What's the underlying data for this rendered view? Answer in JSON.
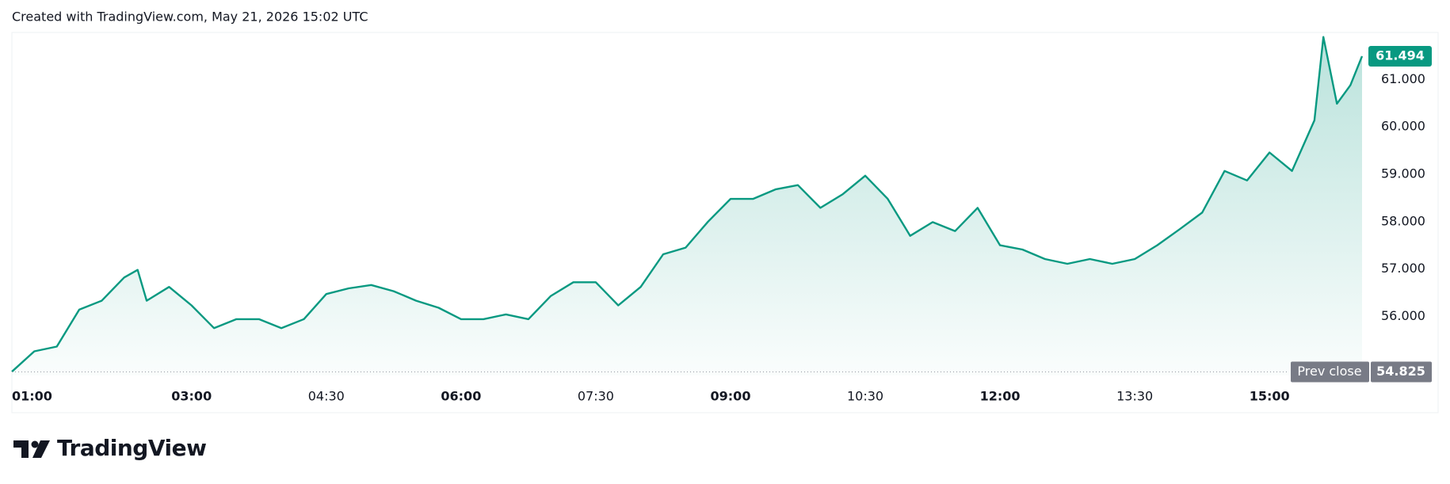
{
  "header": "Created with TradingView.com, May 21, 2026 15:02 UTC",
  "brand": "TradingView",
  "chart_data": {
    "type": "area",
    "color": "#089981",
    "x": [
      1,
      1.25,
      1.5,
      1.75,
      2,
      2.25,
      2.4,
      2.5,
      2.75,
      3,
      3.25,
      3.5,
      3.75,
      4,
      4.25,
      4.5,
      4.75,
      5,
      5.25,
      5.5,
      5.75,
      6,
      6.25,
      6.5,
      6.75,
      7,
      7.25,
      7.5,
      7.75,
      8,
      8.25,
      8.5,
      8.75,
      9,
      9.25,
      9.5,
      9.75,
      10,
      10.25,
      10.5,
      10.75,
      11,
      11.25,
      11.5,
      11.75,
      12,
      12.25,
      12.5,
      12.75,
      13,
      13.25,
      13.5,
      13.75,
      14,
      14.25,
      14.5,
      14.75,
      15,
      15.25,
      15.5,
      15.6,
      15.75,
      15.9,
      16.03
    ],
    "values": [
      54.83,
      55.26,
      55.36,
      56.14,
      56.33,
      56.82,
      56.98,
      56.33,
      56.62,
      56.23,
      55.75,
      55.94,
      55.94,
      55.75,
      55.94,
      56.47,
      56.59,
      56.66,
      56.53,
      56.33,
      56.18,
      55.94,
      55.94,
      56.04,
      55.94,
      56.43,
      56.72,
      56.72,
      56.23,
      56.62,
      57.31,
      57.45,
      58.0,
      58.48,
      58.48,
      58.68,
      58.77,
      58.29,
      58.58,
      58.97,
      58.48,
      57.7,
      57.99,
      57.8,
      58.29,
      57.5,
      57.41,
      57.21,
      57.11,
      57.21,
      57.11,
      57.21,
      57.5,
      57.84,
      58.19,
      59.07,
      58.87,
      59.46,
      59.07,
      60.14,
      61.9,
      60.49,
      60.88,
      61.494
    ],
    "xlim": [
      1,
      16.03
    ],
    "ylim": [
      54.75,
      62.0
    ],
    "xticks": [
      {
        "value": 1,
        "label": "01:00"
      },
      {
        "value": 3,
        "label": "03:00"
      },
      {
        "value": 4.5,
        "label": "04:30"
      },
      {
        "value": 6,
        "label": "06:00"
      },
      {
        "value": 7.5,
        "label": "07:30"
      },
      {
        "value": 9,
        "label": "09:00"
      },
      {
        "value": 10.5,
        "label": "10:30"
      },
      {
        "value": 12,
        "label": "12:00"
      },
      {
        "value": 13.5,
        "label": "13:30"
      },
      {
        "value": 15,
        "label": "15:00"
      }
    ],
    "yticks": [
      {
        "value": 56,
        "label": "56.000"
      },
      {
        "value": 57,
        "label": "57.000"
      },
      {
        "value": 58,
        "label": "58.000"
      },
      {
        "value": 59,
        "label": "59.000"
      },
      {
        "value": 60,
        "label": "60.000"
      },
      {
        "value": 61,
        "label": "61.000"
      }
    ],
    "last_price": 61.494,
    "prev_close": {
      "label": "Prev close",
      "value": 54.825
    }
  }
}
